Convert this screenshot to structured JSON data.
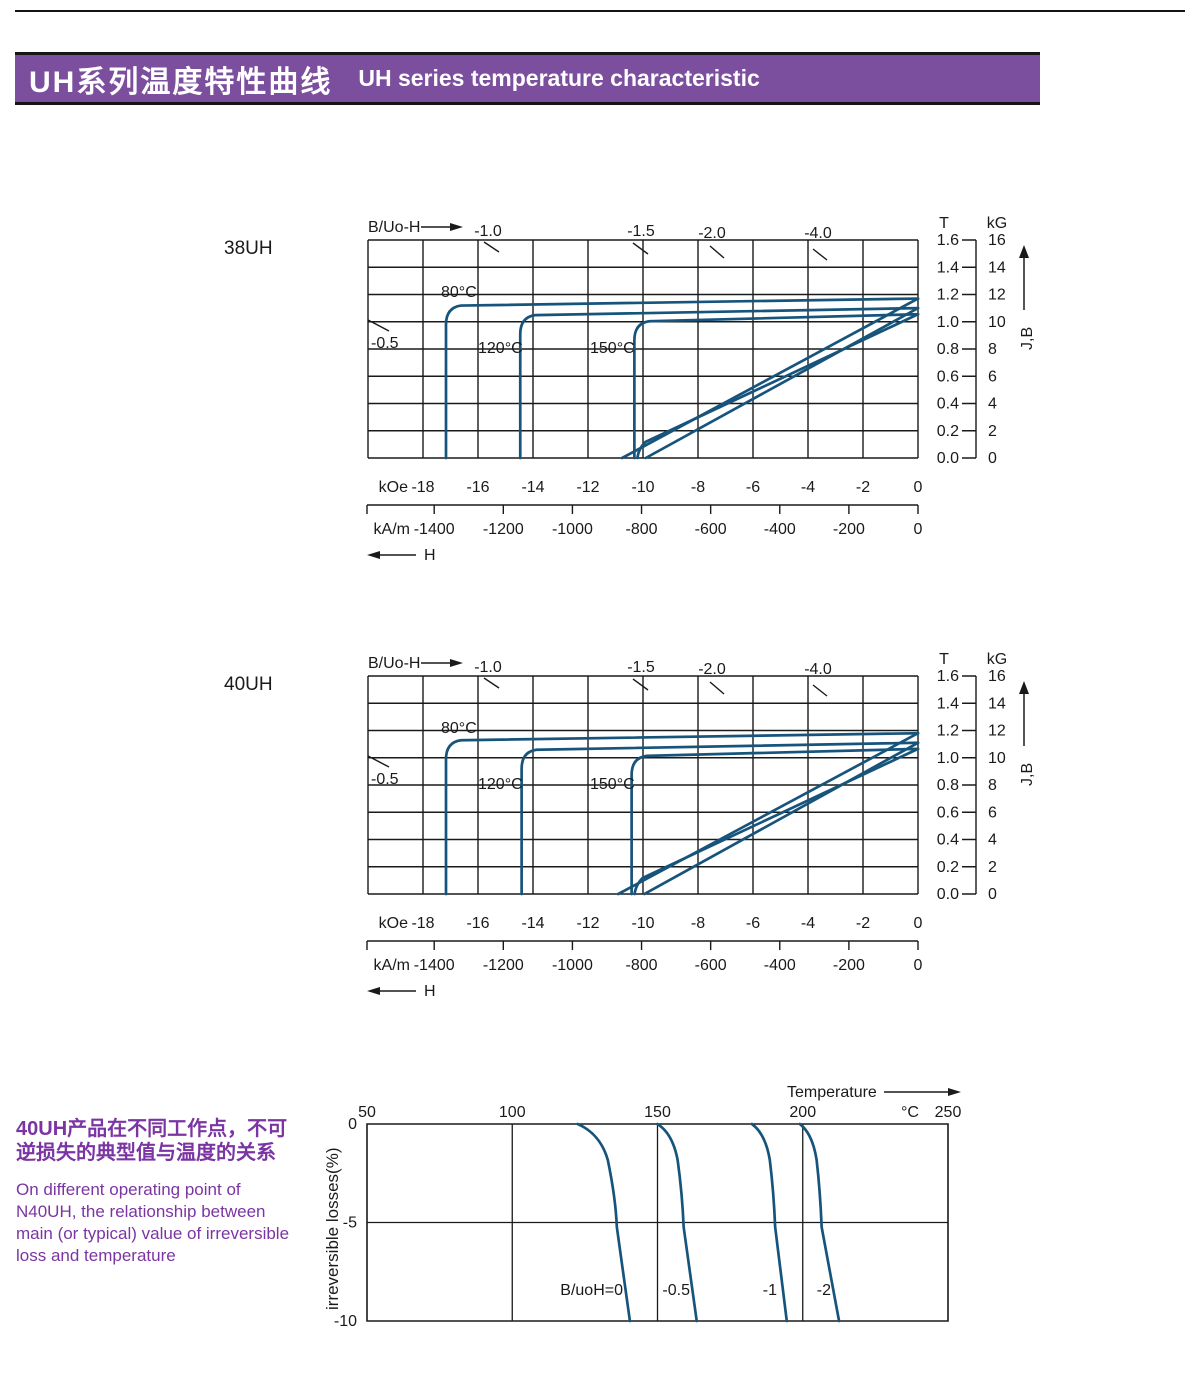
{
  "header": {
    "title_zh": "UH系列温度特性曲线",
    "title_en": "UH series temperature characteristic"
  },
  "left_note": {
    "zh_lines": [
      "40UH产品在不同工作点，不可",
      "逆损失的典型值与温度的关系"
    ],
    "en_lines": [
      "On different operating point of",
      "N40UH,  the relationship between",
      "main (or typical) value of irreversible",
      "loss and temperature"
    ]
  },
  "colors": {
    "banner_purple": "#7C4F9E",
    "text_purple": "#7B35A3",
    "curve_blue": "#17547C",
    "ink": "#1A1A1A"
  },
  "chart_data": [
    {
      "kind": "demag",
      "type": "line",
      "title": "38UH",
      "top_label": "B/Uo-H",
      "load_lines": {
        "left": "-0.5",
        "top": [
          "-1.0",
          "-1.5",
          "-2.0",
          "-4.0"
        ]
      },
      "x_axis": {
        "unit_primary": "kOe",
        "ticks_koe": [
          "-18",
          "-16",
          "-14",
          "-12",
          "-10",
          "-8",
          "-6",
          "-4",
          "-2",
          "0"
        ],
        "unit_secondary": "kA/m",
        "ticks_kam": [
          "-1400",
          "-1200",
          "-1000",
          "-800",
          "-600",
          "-400",
          "-200",
          "0"
        ],
        "arrow_label": "H",
        "range_koe": [
          -20,
          0
        ]
      },
      "y_axis": {
        "unit_left": "T",
        "ticks_t": [
          "1.6",
          "1.4",
          "1.2",
          "1.0",
          "0.8",
          "0.6",
          "0.4",
          "0.2",
          "0.0"
        ],
        "unit_right": "kG",
        "ticks_kg": [
          "16",
          "14",
          "12",
          "10",
          "8",
          "6",
          "4",
          "2",
          "0"
        ],
        "arrow_label": "J,B"
      },
      "series": [
        {
          "label": "80°C",
          "Br_T": 1.17,
          "Hcj_kOe": -17.2,
          "Hcb_kOe": -10.76,
          "bend": false
        },
        {
          "label": "120°C",
          "Br_T": 1.1,
          "Hcj_kOe": -14.5,
          "Hcb_kOe": -9.9,
          "bend": false
        },
        {
          "label": "150°C",
          "Br_T": 1.055,
          "Hcj_kOe": -10.35,
          "Hcb_kOe": -10.2,
          "bend": true
        }
      ]
    },
    {
      "kind": "demag",
      "type": "line",
      "title": "40UH",
      "top_label": "B/Uo-H",
      "load_lines": {
        "left": "-0.5",
        "top": [
          "-1.0",
          "-1.5",
          "-2.0",
          "-4.0"
        ]
      },
      "x_axis": {
        "unit_primary": "kOe",
        "ticks_koe": [
          "-18",
          "-16",
          "-14",
          "-12",
          "-10",
          "-8",
          "-6",
          "-4",
          "-2",
          "0"
        ],
        "unit_secondary": "kA/m",
        "ticks_kam": [
          "-1400",
          "-1200",
          "-1000",
          "-800",
          "-600",
          "-400",
          "-200",
          "0"
        ],
        "arrow_label": "H",
        "range_koe": [
          -20,
          0
        ]
      },
      "y_axis": {
        "unit_left": "T",
        "ticks_t": [
          "1.6",
          "1.4",
          "1.2",
          "1.0",
          "0.8",
          "0.6",
          "0.4",
          "0.2",
          "0.0"
        ],
        "unit_right": "kG",
        "ticks_kg": [
          "16",
          "14",
          "12",
          "10",
          "8",
          "6",
          "4",
          "2",
          "0"
        ],
        "arrow_label": "J,B"
      },
      "series": [
        {
          "label": "80°C",
          "Br_T": 1.18,
          "Hcj_kOe": -17.2,
          "Hcb_kOe": -10.9,
          "bend": false
        },
        {
          "label": "120°C",
          "Br_T": 1.11,
          "Hcj_kOe": -14.45,
          "Hcb_kOe": -9.95,
          "bend": false
        },
        {
          "label": "150°C",
          "Br_T": 1.065,
          "Hcj_kOe": -10.45,
          "Hcb_kOe": -10.3,
          "bend": true
        }
      ]
    },
    {
      "kind": "loss",
      "type": "line",
      "title": "40UH irreversible loss vs temperature",
      "x_axis": {
        "label": "Temperature",
        "unit": "°C",
        "ticks": [
          50,
          100,
          150,
          200,
          250
        ],
        "gridlines": [
          100,
          150,
          200
        ],
        "range": [
          50,
          250
        ]
      },
      "y_axis": {
        "label": "irreversible  losses(%)",
        "ticks": [
          0,
          -5,
          -10
        ],
        "gridline": -5,
        "range": [
          -10,
          0
        ]
      },
      "series": [
        {
          "label": "B/uoH=0",
          "points": [
            [
              122.5,
              0
            ],
            [
              136,
              -5
            ],
            [
              140.5,
              -10
            ]
          ]
        },
        {
          "label": "-0.5",
          "points": [
            [
              150,
              0
            ],
            [
              159,
              -5
            ],
            [
              163.5,
              -10
            ]
          ]
        },
        {
          "label": "-1",
          "points": [
            [
              182.5,
              0
            ],
            [
              190.5,
              -5
            ],
            [
              194.5,
              -10
            ]
          ]
        },
        {
          "label": "-2",
          "points": [
            [
              199,
              0
            ],
            [
              206.5,
              -5
            ],
            [
              212.5,
              -10
            ]
          ]
        }
      ]
    }
  ]
}
